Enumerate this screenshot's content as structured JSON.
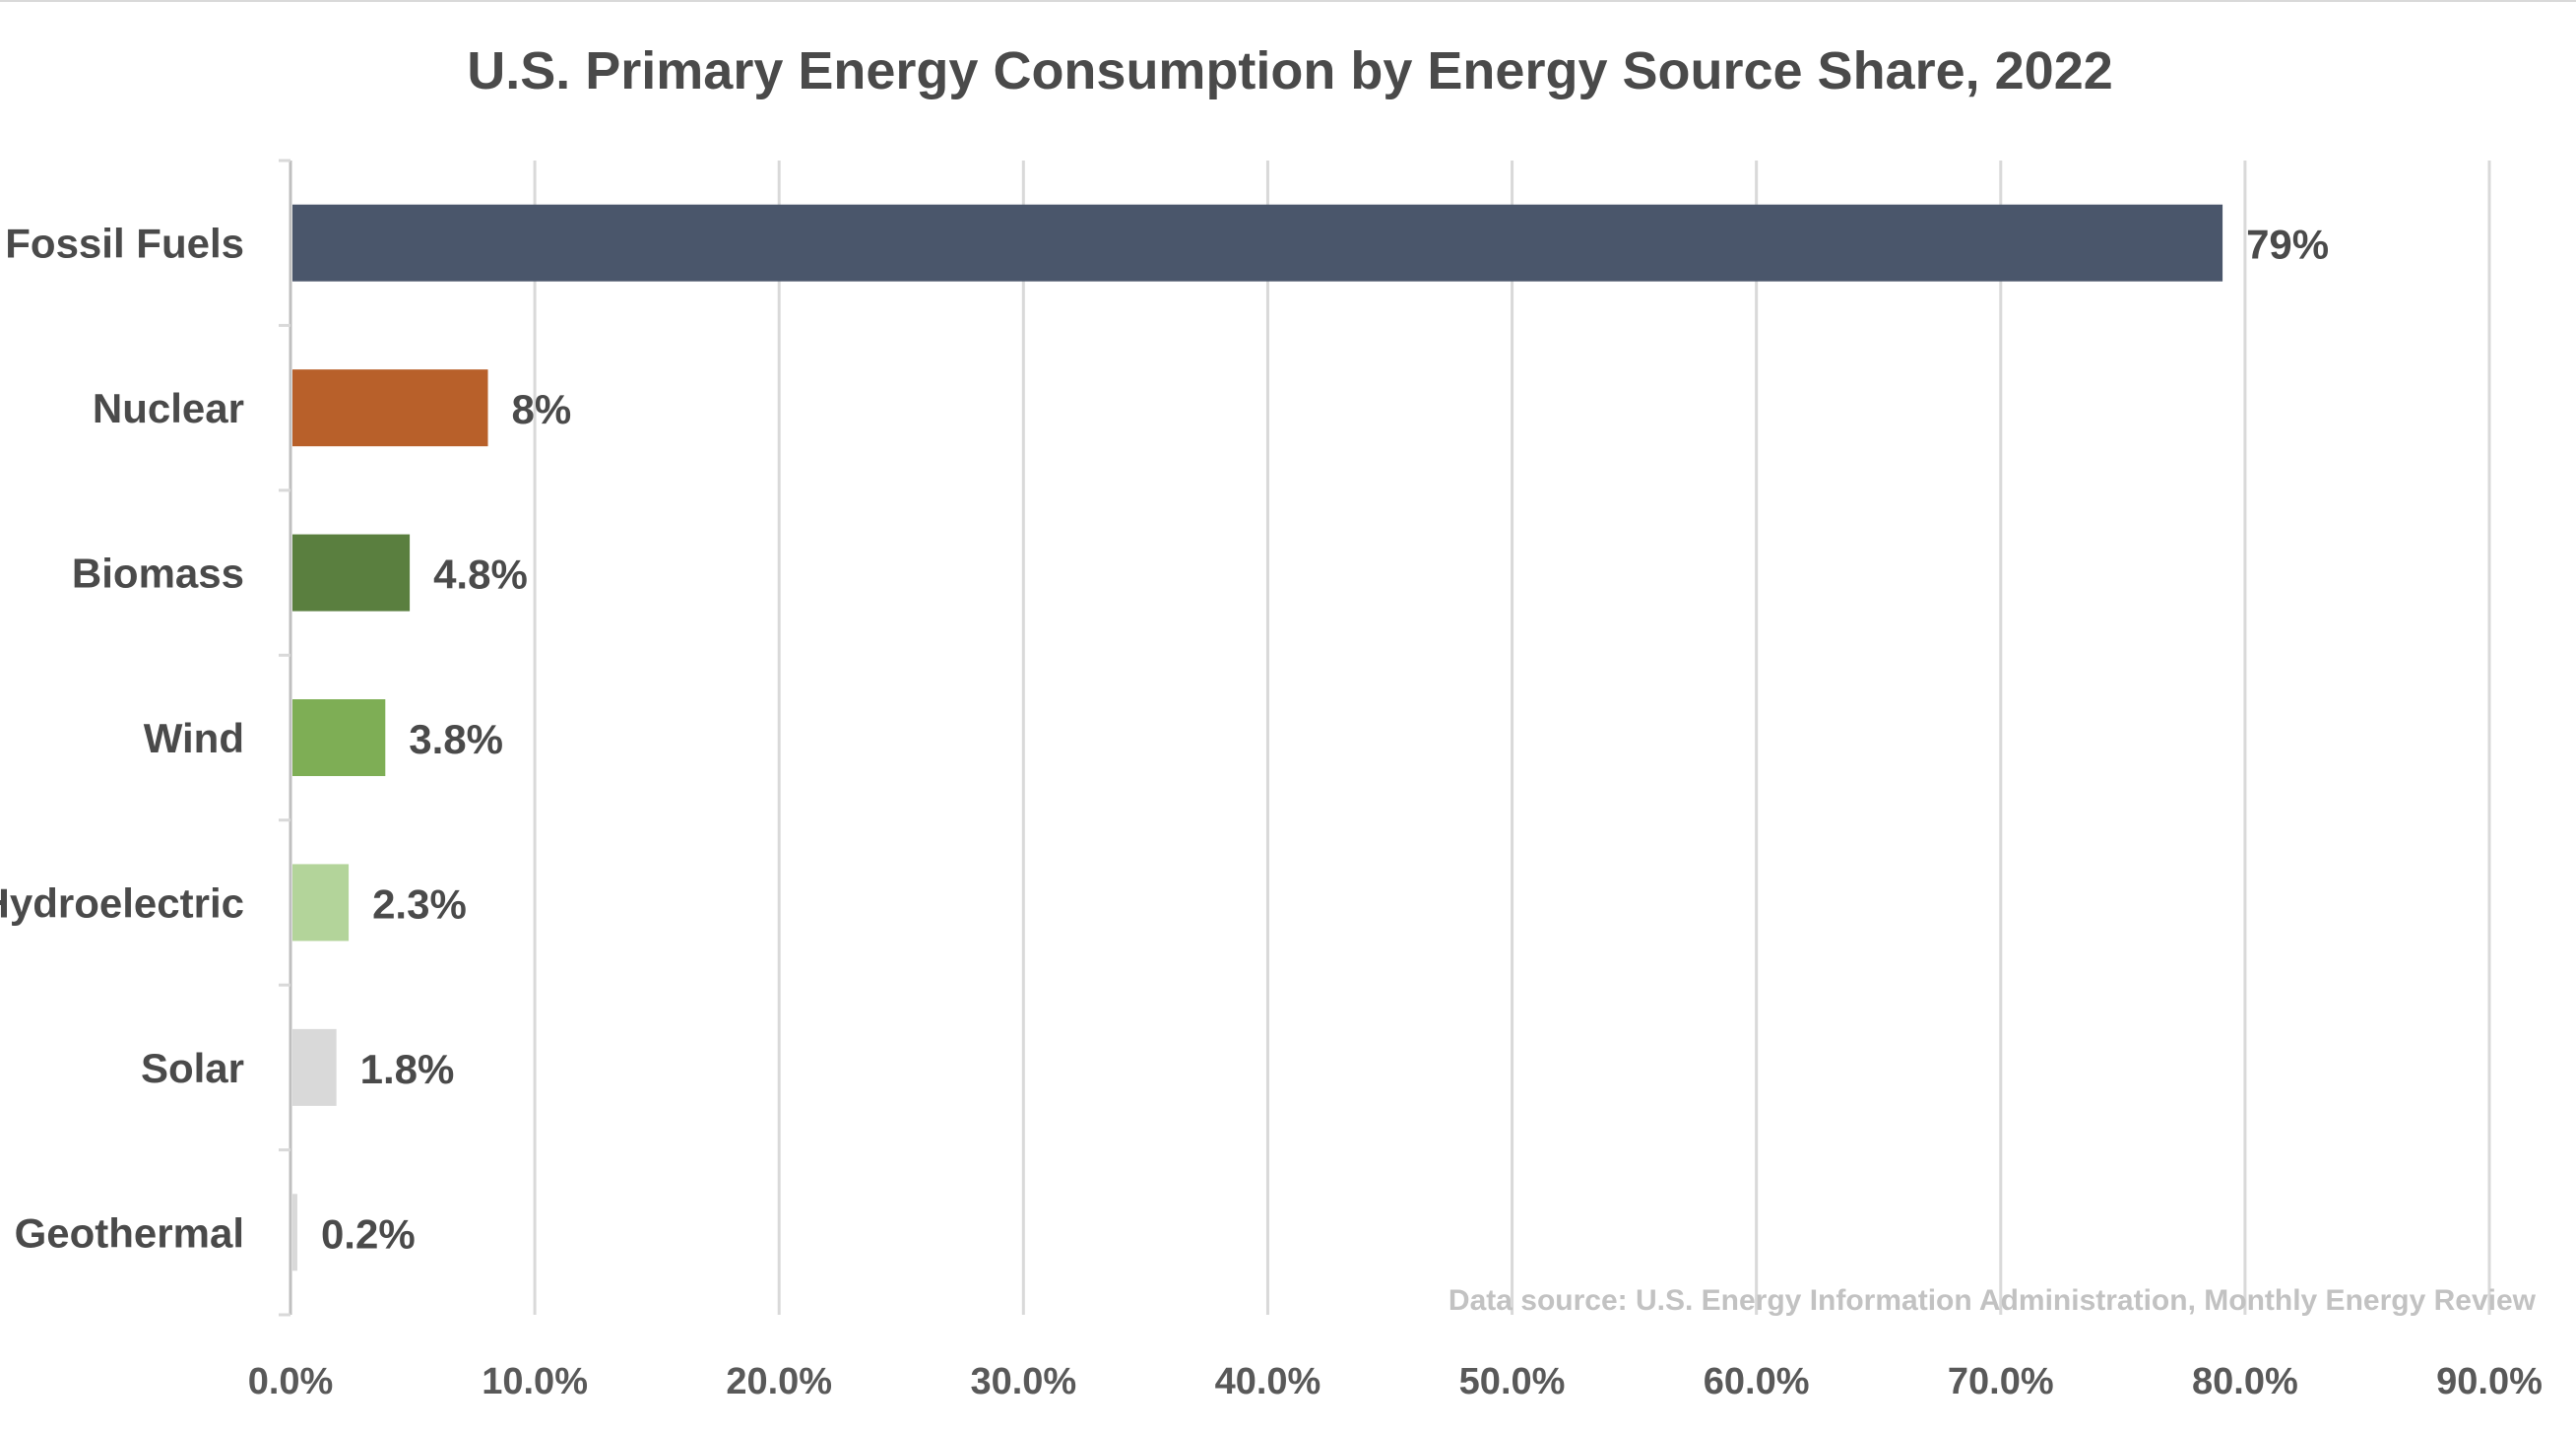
{
  "chart_data": {
    "type": "bar",
    "orientation": "horizontal",
    "title": "U.S. Primary Energy Consumption by Energy Source Share, 2022",
    "xlabel": "",
    "ylabel": "",
    "categories": [
      "Fossil Fuels",
      "Nuclear",
      "Biomass",
      "Wind",
      "Hydroelectric",
      "Solar",
      "Geothermal"
    ],
    "values": [
      79,
      8,
      4.8,
      3.8,
      2.3,
      1.8,
      0.2
    ],
    "value_labels": [
      "79%",
      "8%",
      "4.8%",
      "3.8%",
      "2.3%",
      "1.8%",
      "0.2%"
    ],
    "bar_colors": [
      "#4a566b",
      "#b8602a",
      "#5a7f3f",
      "#7eae55",
      "#b3d49a",
      "#d9d9d9",
      "#d9d9d9"
    ],
    "xlim": [
      0,
      90
    ],
    "xticks": [
      0,
      10,
      20,
      30,
      40,
      50,
      60,
      70,
      80,
      90
    ],
    "xtick_labels": [
      "0.0%",
      "10.0%",
      "20.0%",
      "30.0%",
      "40.0%",
      "50.0%",
      "60.0%",
      "70.0%",
      "80.0%",
      "90.0%"
    ],
    "grid": "vertical",
    "legend": "none",
    "source_note": "Data source: U.S. Energy Information Administration, Monthly Energy Review"
  }
}
